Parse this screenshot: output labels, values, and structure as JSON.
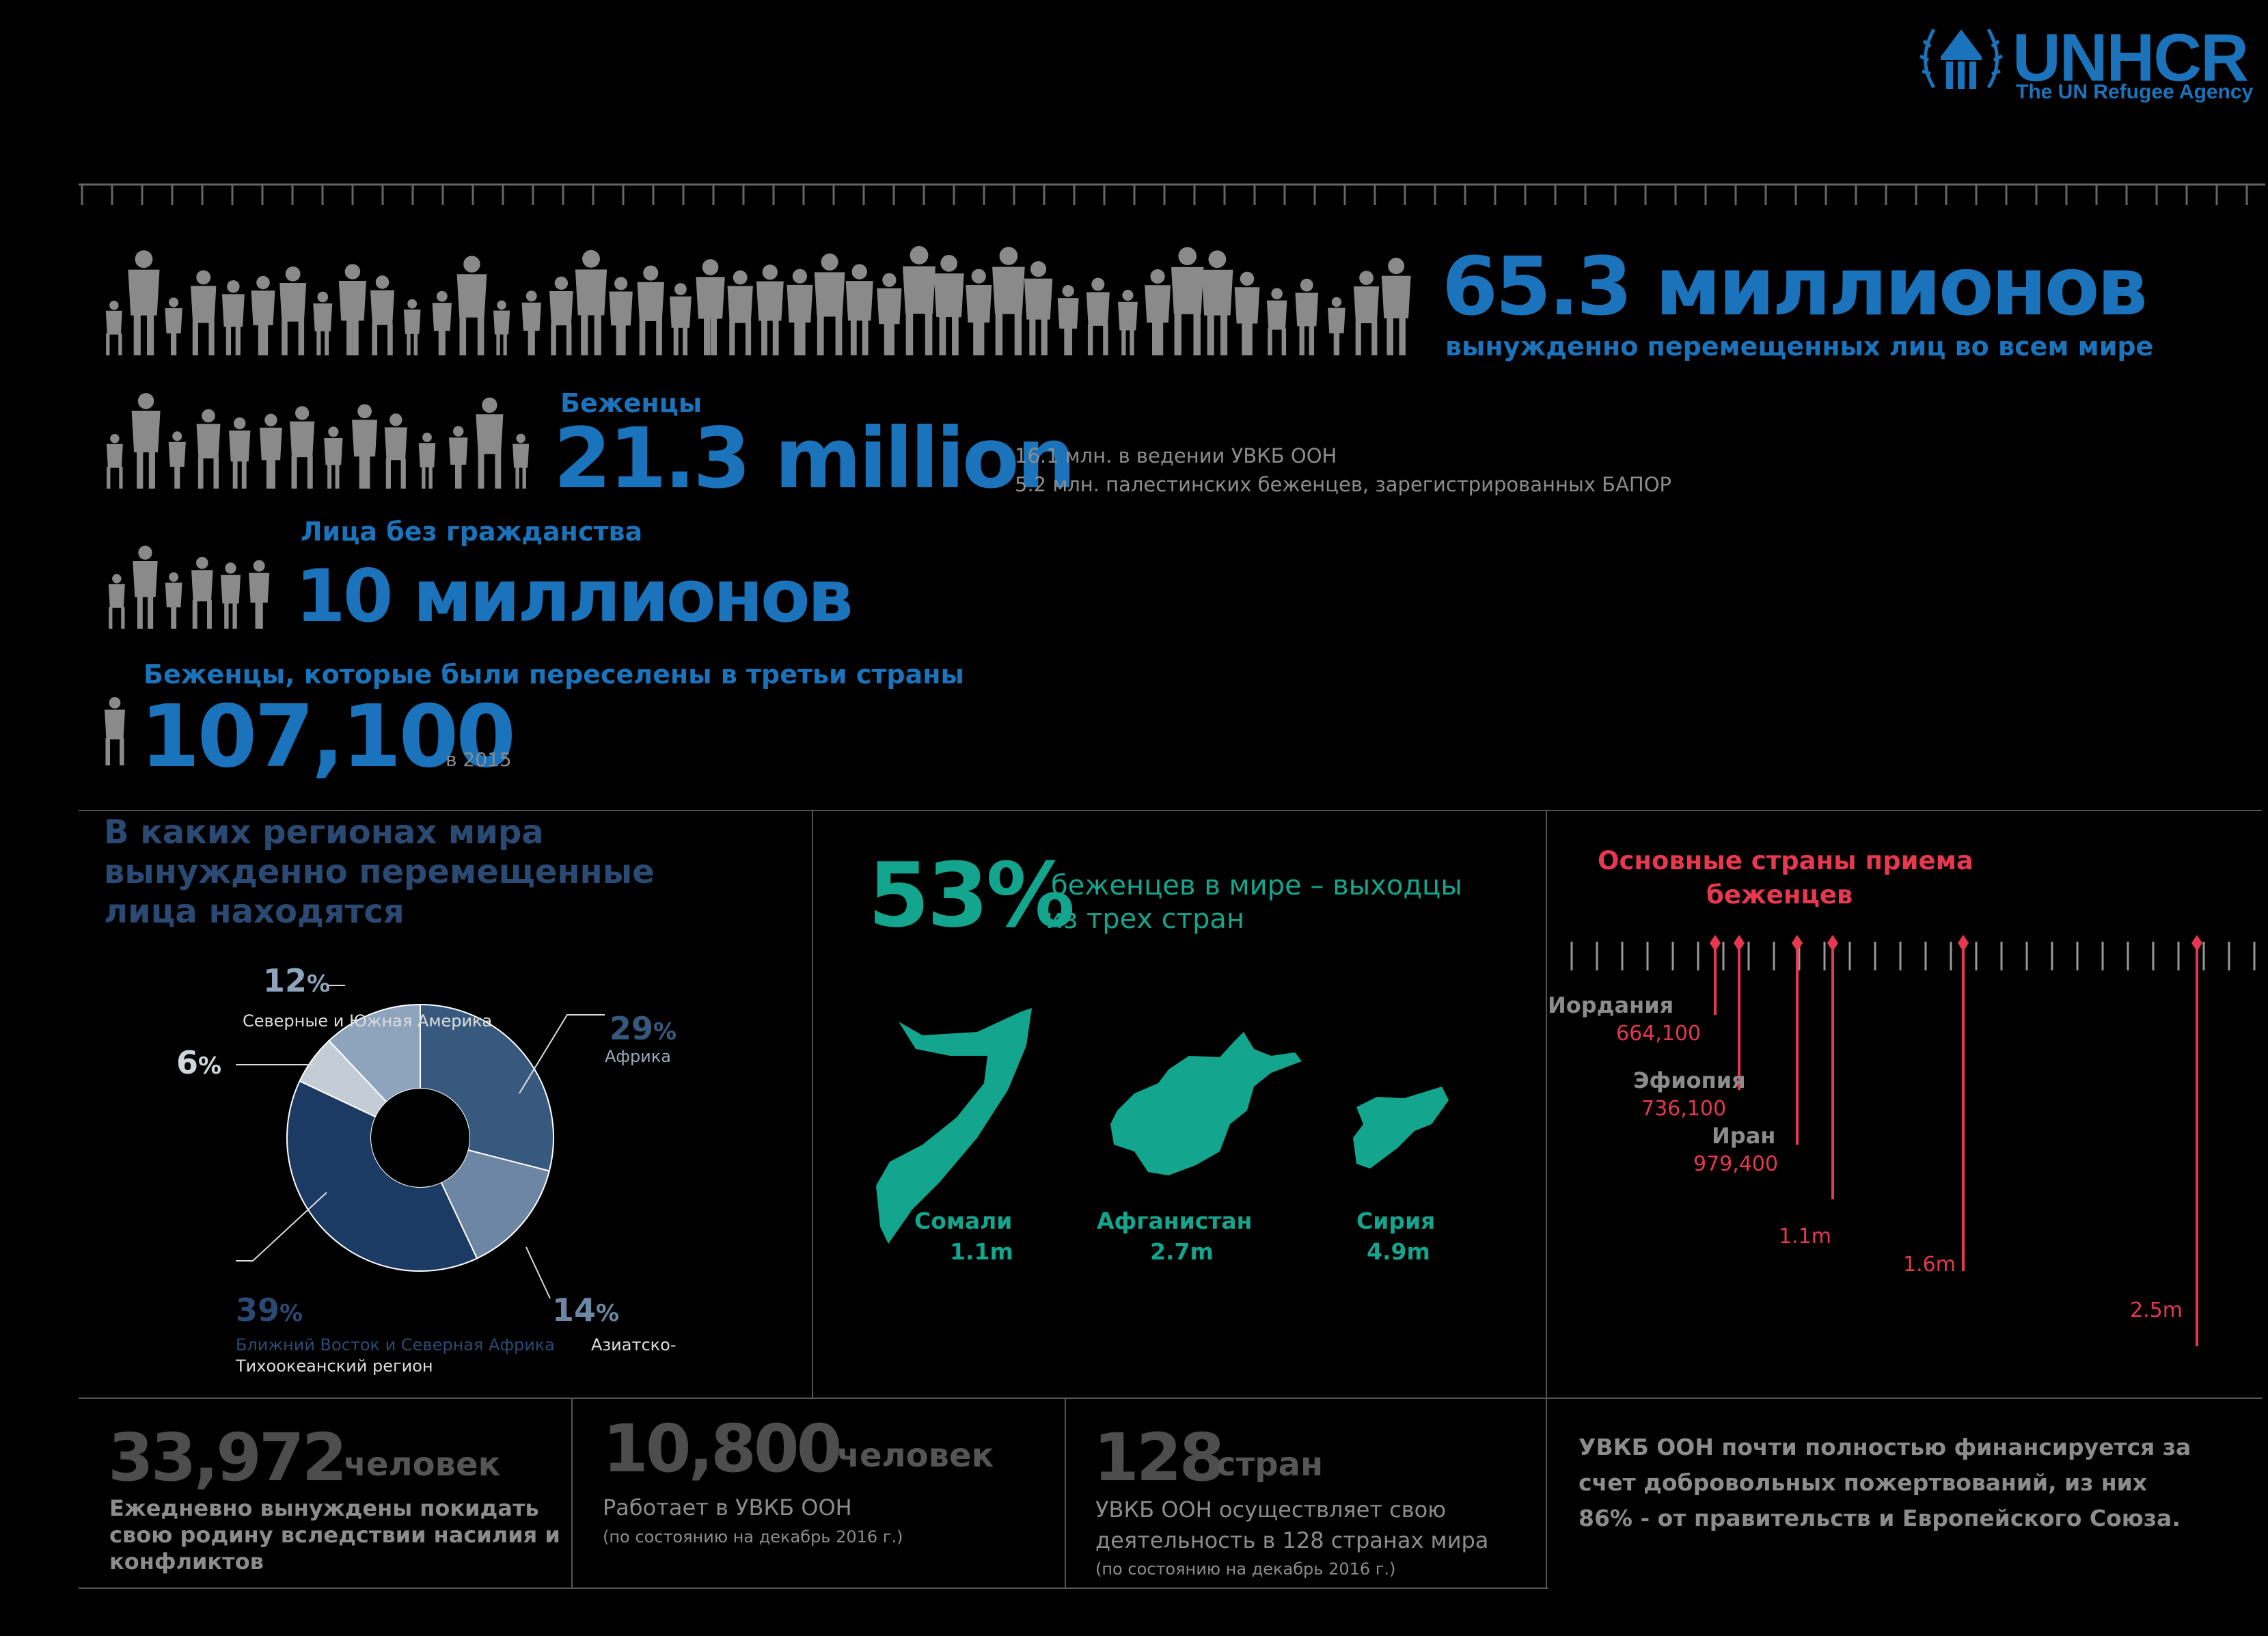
{
  "logo": {
    "name": "UNHCR",
    "tagline": "The UN Refugee Agency",
    "color": "#1b74bb"
  },
  "colors": {
    "blue": "#1b74bb",
    "navy": "#2b4a73",
    "teal": "#13a58d",
    "red": "#e6384f",
    "grey": "#8c8c8c",
    "silhouette": "#8a8a8a"
  },
  "headline": {
    "value": "65.3 миллионов",
    "label": "вынужденно перемещенных лиц во всем мире"
  },
  "refugees": {
    "title": "Беженцы",
    "value": "21.3 million",
    "note1": "16.1 млн. в ведении УВКБ ООН",
    "note2": "5.2 млн. палестинских беженцев, зарегистрированных БАПОР"
  },
  "stateless": {
    "title": "Лица без гражданства",
    "value": "10 миллионов"
  },
  "resettled": {
    "title": "Беженцы, которые были переселены в третьи страны",
    "value": "107,100",
    "suffix": "в 2015"
  },
  "regions": {
    "title_line1": "В каких регионах мира",
    "title_line2": "вынужденно перемещенные",
    "title_line3": "лица находятся",
    "chart_data": {
      "type": "pie",
      "title": "В каких регионах мира вынужденно перемещенные лица находятся",
      "slices": [
        {
          "label": "Африка",
          "value": 29,
          "display": "29",
          "color": "#37597d"
        },
        {
          "label": "Азиатско-Тихоокеанский регион",
          "value": 14,
          "display": "14",
          "color": "#6c86a3"
        },
        {
          "label": "Ближний Восток и Северная Африка",
          "value": 39,
          "display": "39",
          "color": "#1b3a64"
        },
        {
          "label": "",
          "value": 6,
          "display": "6",
          "color": "#c4ccd5"
        },
        {
          "label": "Северные и Южная Америка",
          "value": 12,
          "display": "12",
          "color": "#8ea4bd"
        }
      ]
    },
    "label_africa_pct": "29",
    "label_africa": "Африка",
    "label_asia_pct": "14",
    "label_asia_line1": "Азиатско-",
    "label_asia_line2": "Тихоокеанский регион",
    "label_mena_pct": "39",
    "label_mena": "Ближний Восток и Северная Африка",
    "label_europe_pct": "6",
    "label_americas_pct": "12",
    "label_americas": "Северные и Южная Америка",
    "pct_sign": "%"
  },
  "origin": {
    "pct": "53%",
    "text_line1": "беженцев в мире – выходцы",
    "text_line2": "из трех стран",
    "countries": [
      {
        "name": "Сомали",
        "value": "1.1m"
      },
      {
        "name": "Афганистан",
        "value": "2.7m"
      },
      {
        "name": "Сирия",
        "value": "4.9m"
      }
    ]
  },
  "hosts": {
    "title_line1": "Основные страны приема",
    "title_line2": "беженцев",
    "items": [
      {
        "name": "Иордания",
        "value": "664,100"
      },
      {
        "name": "Эфиопия",
        "value": "736,100"
      },
      {
        "name": "Иран",
        "value": "979,400"
      },
      {
        "name": "",
        "value": "1.1m"
      },
      {
        "name": "",
        "value": "1.6m"
      },
      {
        "name": "",
        "value": "2.5m"
      }
    ]
  },
  "stats": [
    {
      "value": "33,972",
      "unit": "человек",
      "line1": "Ежедневно вынуждены покидать",
      "line2": "свою родину вследствии насилия и",
      "line3": "конфликтов"
    },
    {
      "value": "10,800",
      "unit": "человек",
      "line1": "Работает в УВКБ ООН",
      "line2": "(по состоянию на декабрь 2016 г.)"
    },
    {
      "value": "128",
      "unit": "стран",
      "line1": "УВКБ ООН осуществляет свою",
      "line2": "деятельность в 128 странах мира",
      "line3": "(по состоянию на декабрь 2016 г.)"
    }
  ],
  "funding": {
    "line1": "УВКБ ООН почти полностью финансируется за",
    "line2": "счет добровольных пожертвований, из них",
    "line3": "86% - от правительств и Европейского Союза."
  }
}
